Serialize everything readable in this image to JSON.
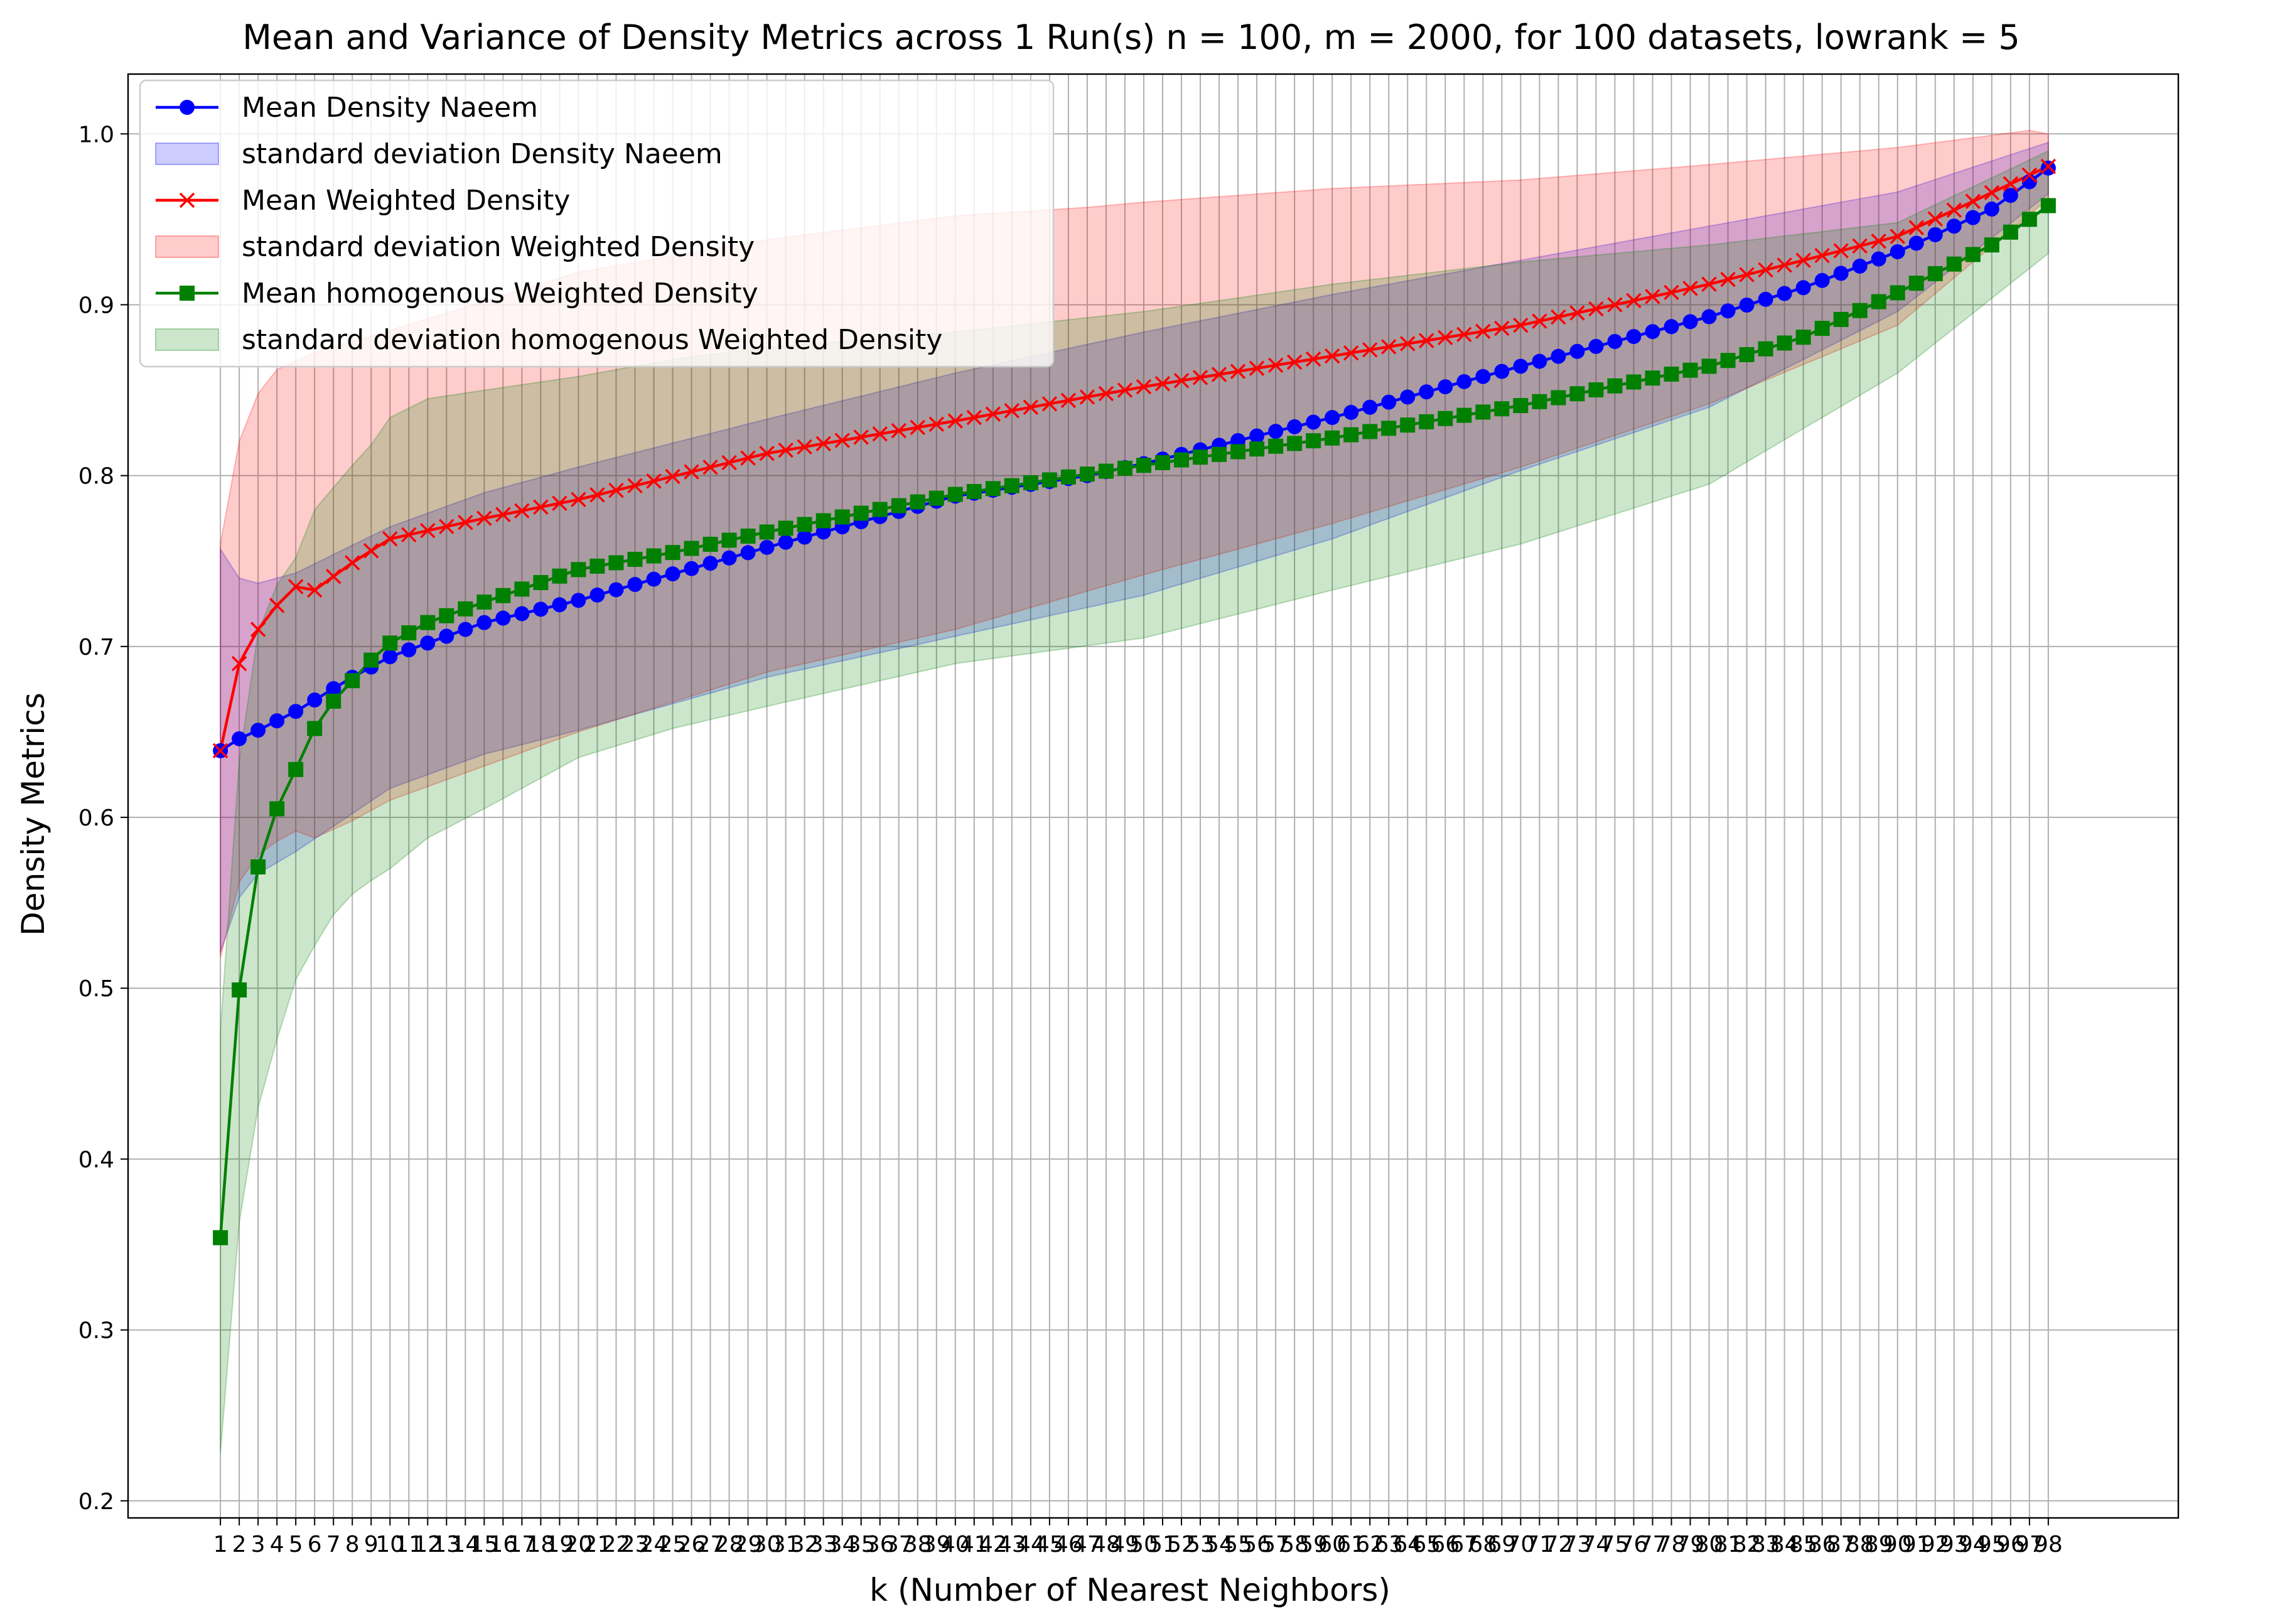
{
  "chart_data": {
    "type": "line",
    "title": "Mean and Variance of Density Metrics across 1 Run(s) n  = 100, m  = 2000, for 100 datasets, lowrank = 5",
    "xlabel": "k (Number of Nearest Neighbors)",
    "ylabel": "Density Metrics",
    "xlim": [
      -3.9,
      104.9
    ],
    "ylim": [
      0.19,
      1.035
    ],
    "yticks": [
      0.2,
      0.3,
      0.4,
      0.5,
      0.6,
      0.7,
      0.8,
      0.9,
      1.0
    ],
    "ytick_labels": [
      "0.2",
      "0.3",
      "0.4",
      "0.5",
      "0.6",
      "0.7",
      "0.8",
      "0.9",
      "1.0"
    ],
    "x_range": [
      1,
      98
    ],
    "grid": true,
    "legend_position": "top-left",
    "legend_entries": [
      "Mean Density Naeem",
      "standard deviation Density Naeem",
      "Mean Weighted Density",
      "standard deviation Weighted Density",
      "Mean homogenous Weighted Density",
      "standard deviation homogenous Weighted Density"
    ],
    "colors": {
      "naeem": "#0000ff",
      "weighted": "#ff0000",
      "homogenous": "#008000"
    },
    "series": [
      {
        "name": "Mean Density Naeem",
        "color": "#0000ff",
        "marker": "circle",
        "anchors_x": [
          1,
          2,
          3,
          5,
          8,
          10,
          15,
          20,
          30,
          40,
          47,
          50,
          60,
          70,
          80,
          85,
          90,
          95,
          98
        ],
        "anchors_y": [
          0.639,
          0.646,
          0.651,
          0.662,
          0.682,
          0.694,
          0.714,
          0.727,
          0.758,
          0.788,
          0.8,
          0.807,
          0.834,
          0.864,
          0.893,
          0.91,
          0.931,
          0.956,
          0.98
        ],
        "band_upper_x": [
          1,
          2,
          3,
          5,
          10,
          15,
          20,
          30,
          40,
          50,
          60,
          70,
          80,
          90,
          98
        ],
        "band_upper_y": [
          0.757,
          0.74,
          0.737,
          0.743,
          0.77,
          0.79,
          0.805,
          0.833,
          0.86,
          0.884,
          0.906,
          0.926,
          0.946,
          0.966,
          0.995
        ],
        "band_lower_x": [
          1,
          2,
          3,
          5,
          10,
          15,
          20,
          30,
          40,
          50,
          60,
          70,
          80,
          90,
          98
        ],
        "band_lower_y": [
          0.521,
          0.553,
          0.567,
          0.58,
          0.617,
          0.637,
          0.651,
          0.682,
          0.706,
          0.73,
          0.763,
          0.803,
          0.84,
          0.896,
          0.965
        ]
      },
      {
        "name": "Mean Weighted Density",
        "color": "#ff0000",
        "marker": "x",
        "anchors_x": [
          1,
          2,
          3,
          4,
          5,
          6,
          8,
          10,
          15,
          20,
          30,
          40,
          50,
          60,
          70,
          80,
          90,
          98
        ],
        "anchors_y": [
          0.639,
          0.69,
          0.71,
          0.724,
          0.735,
          0.733,
          0.749,
          0.763,
          0.775,
          0.786,
          0.813,
          0.832,
          0.852,
          0.87,
          0.888,
          0.912,
          0.94,
          0.981
        ],
        "band_upper_x": [
          1,
          2,
          3,
          4,
          6,
          10,
          15,
          20,
          30,
          40,
          47,
          50,
          60,
          70,
          80,
          90,
          97,
          98
        ],
        "band_upper_y": [
          0.76,
          0.82,
          0.848,
          0.862,
          0.872,
          0.885,
          0.902,
          0.919,
          0.938,
          0.952,
          0.957,
          0.96,
          0.968,
          0.973,
          0.982,
          0.992,
          1.002,
          1.0
        ],
        "band_lower_x": [
          1,
          2,
          3,
          4,
          5,
          6,
          8,
          10,
          15,
          20,
          30,
          40,
          50,
          60,
          70,
          80,
          90,
          98
        ],
        "band_lower_y": [
          0.518,
          0.562,
          0.578,
          0.586,
          0.592,
          0.588,
          0.598,
          0.61,
          0.63,
          0.65,
          0.685,
          0.71,
          0.742,
          0.772,
          0.805,
          0.842,
          0.888,
          0.962
        ]
      },
      {
        "name": "Mean homogenous Weighted Density",
        "color": "#008000",
        "marker": "square",
        "anchors_x": [
          1,
          2,
          3,
          4,
          5,
          6,
          7,
          8,
          9,
          10,
          12,
          15,
          20,
          25,
          30,
          40,
          50,
          60,
          70,
          80,
          85,
          90,
          95,
          97,
          98
        ],
        "anchors_y": [
          0.354,
          0.499,
          0.571,
          0.605,
          0.628,
          0.652,
          0.668,
          0.68,
          0.692,
          0.702,
          0.714,
          0.726,
          0.745,
          0.755,
          0.767,
          0.789,
          0.806,
          0.822,
          0.841,
          0.864,
          0.881,
          0.907,
          0.935,
          0.95,
          0.958
        ],
        "band_upper_x": [
          1,
          2,
          3,
          4,
          5,
          6,
          7,
          8,
          9,
          10,
          12,
          15,
          20,
          25,
          30,
          40,
          50,
          60,
          70,
          80,
          90,
          98
        ],
        "band_upper_y": [
          0.475,
          0.633,
          0.708,
          0.736,
          0.752,
          0.78,
          0.793,
          0.806,
          0.818,
          0.834,
          0.845,
          0.85,
          0.858,
          0.868,
          0.875,
          0.884,
          0.896,
          0.912,
          0.925,
          0.935,
          0.948,
          0.99
        ],
        "band_lower_x": [
          1,
          2,
          3,
          4,
          5,
          6,
          7,
          8,
          9,
          10,
          12,
          15,
          20,
          25,
          30,
          40,
          50,
          60,
          70,
          80,
          90,
          98
        ],
        "band_lower_y": [
          0.228,
          0.363,
          0.43,
          0.47,
          0.505,
          0.525,
          0.543,
          0.555,
          0.563,
          0.57,
          0.588,
          0.605,
          0.635,
          0.652,
          0.665,
          0.69,
          0.705,
          0.733,
          0.76,
          0.795,
          0.86,
          0.93
        ]
      }
    ]
  }
}
